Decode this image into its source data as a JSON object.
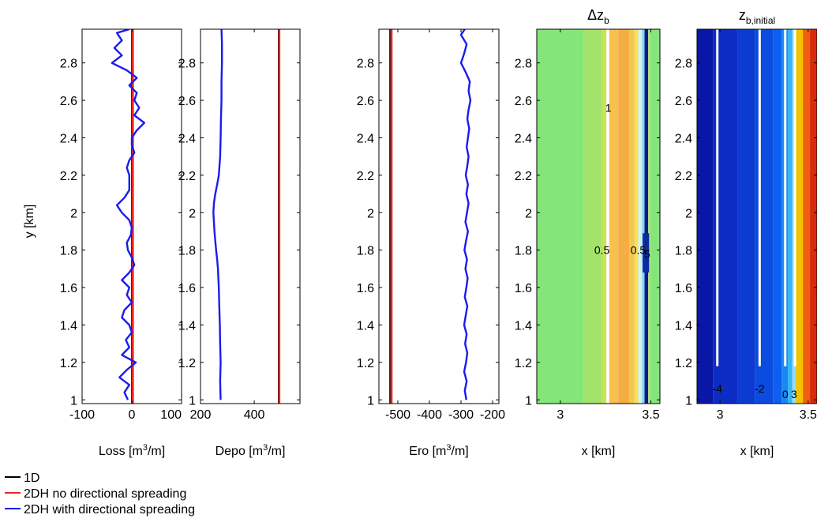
{
  "figure": {
    "y_axis_label": "y [km]",
    "legend": [
      {
        "label": "1D",
        "color": "#000000"
      },
      {
        "label": "2DH no directional spreading",
        "color": "#e6261f"
      },
      {
        "label": "2DH with directional spreading",
        "color": "#1b1bf0"
      }
    ]
  },
  "chart_data": [
    {
      "type": "line",
      "xlabel": "Loss [m³/m]",
      "ylabel": "y [km]",
      "xlim": [
        -100,
        100
      ],
      "ylim": [
        0.98,
        2.98
      ],
      "xticks": [
        "-100",
        "0",
        "100"
      ],
      "yticks": [
        "1",
        "1.2",
        "1.4",
        "1.6",
        "1.8",
        "2",
        "2.2",
        "2.4",
        "2.6",
        "2.8"
      ],
      "grid": false,
      "legend_position": "below plots",
      "series": [
        {
          "name": "1D",
          "color": "#000000",
          "x": [
            0,
            0
          ],
          "y": [
            0.98,
            2.98
          ]
        },
        {
          "name": "2DH no directional spreading",
          "color": "#e6261f",
          "x": [
            2,
            2
          ],
          "y": [
            0.98,
            2.98
          ]
        },
        {
          "name": "2DH with directional spreading",
          "color": "#1b1bf0",
          "y": [
            1.0,
            1.04,
            1.08,
            1.12,
            1.16,
            1.2,
            1.24,
            1.28,
            1.32,
            1.36,
            1.4,
            1.44,
            1.48,
            1.52,
            1.56,
            1.6,
            1.64,
            1.68,
            1.72,
            1.76,
            1.8,
            1.84,
            1.88,
            1.92,
            1.96,
            2.0,
            2.04,
            2.08,
            2.12,
            2.16,
            2.2,
            2.24,
            2.28,
            2.32,
            2.36,
            2.4,
            2.44,
            2.48,
            2.52,
            2.56,
            2.6,
            2.64,
            2.68,
            2.72,
            2.76,
            2.8,
            2.84,
            2.88,
            2.92,
            2.96,
            2.98
          ],
          "x": [
            -8,
            -15,
            -5,
            -25,
            -10,
            8,
            -20,
            -5,
            -12,
            0,
            -5,
            -20,
            -15,
            0,
            -10,
            -5,
            -20,
            -5,
            5,
            0,
            -8,
            -10,
            -2,
            0,
            -5,
            -20,
            -30,
            -15,
            -5,
            -5,
            -5,
            -10,
            -5,
            5,
            0,
            0,
            10,
            25,
            5,
            15,
            5,
            10,
            -5,
            10,
            -10,
            -40,
            -20,
            -35,
            -20,
            -30,
            -5
          ]
        }
      ]
    },
    {
      "type": "line",
      "xlabel": "Depo [m³/m]",
      "xlim": [
        200,
        570
      ],
      "ylim": [
        0.98,
        2.98
      ],
      "xticks": [
        "200",
        "400"
      ],
      "yticks": [
        "1",
        "1.2",
        "1.4",
        "1.6",
        "1.8",
        "2",
        "2.2",
        "2.4",
        "2.6",
        "2.8"
      ],
      "series": [
        {
          "name": "1D",
          "color": "#000000",
          "x": [
            490,
            490
          ],
          "y": [
            0.98,
            2.98
          ]
        },
        {
          "name": "2DH no directional spreading",
          "color": "#e6261f",
          "x": [
            493,
            493
          ],
          "y": [
            0.98,
            2.98
          ]
        },
        {
          "name": "2DH with directional spreading",
          "color": "#1b1bf0",
          "y": [
            1.0,
            1.1,
            1.2,
            1.3,
            1.4,
            1.5,
            1.6,
            1.7,
            1.75,
            1.8,
            1.85,
            1.9,
            1.95,
            2.0,
            2.05,
            2.1,
            2.15,
            2.2,
            2.3,
            2.4,
            2.5,
            2.6,
            2.7,
            2.8,
            2.9,
            2.98
          ],
          "x": [
            275,
            273,
            275,
            273,
            272,
            270,
            268,
            265,
            262,
            258,
            255,
            252,
            250,
            248,
            250,
            255,
            262,
            268,
            273,
            275,
            276,
            278,
            278,
            280,
            280,
            278
          ]
        }
      ]
    },
    {
      "type": "line",
      "xlabel": "Ero [m³/m]",
      "xlim": [
        -560,
        -180
      ],
      "ylim": [
        0.98,
        2.98
      ],
      "xticks": [
        "-500",
        "-400",
        "-300",
        "-200"
      ],
      "yticks": [
        "1",
        "1.2",
        "1.4",
        "1.6",
        "1.8",
        "2",
        "2.2",
        "2.4",
        "2.6",
        "2.8"
      ],
      "series": [
        {
          "name": "1D",
          "color": "#000000",
          "x": [
            -525,
            -525
          ],
          "y": [
            0.98,
            2.98
          ]
        },
        {
          "name": "2DH no directional spreading",
          "color": "#e6261f",
          "x": [
            -520,
            -520
          ],
          "y": [
            0.98,
            2.98
          ]
        },
        {
          "name": "2DH with directional spreading",
          "color": "#1b1bf0",
          "y": [
            1.0,
            1.05,
            1.1,
            1.15,
            1.2,
            1.25,
            1.3,
            1.35,
            1.4,
            1.45,
            1.5,
            1.55,
            1.6,
            1.65,
            1.7,
            1.75,
            1.8,
            1.85,
            1.9,
            1.95,
            2.0,
            2.05,
            2.1,
            2.15,
            2.2,
            2.25,
            2.3,
            2.35,
            2.4,
            2.45,
            2.5,
            2.55,
            2.6,
            2.65,
            2.7,
            2.75,
            2.8,
            2.85,
            2.9,
            2.95,
            2.98
          ],
          "x": [
            -283,
            -288,
            -282,
            -290,
            -284,
            -280,
            -287,
            -282,
            -290,
            -285,
            -280,
            -288,
            -283,
            -279,
            -286,
            -281,
            -289,
            -284,
            -278,
            -286,
            -281,
            -276,
            -283,
            -278,
            -285,
            -280,
            -276,
            -282,
            -278,
            -274,
            -280,
            -276,
            -270,
            -276,
            -272,
            -285,
            -300,
            -290,
            -282,
            -300,
            -288
          ]
        }
      ]
    },
    {
      "type": "heatmap",
      "title": "Δz",
      "title_sub": "b",
      "xlabel": "x [km]",
      "xlim": [
        2.87,
        3.55
      ],
      "ylim": [
        0.98,
        2.98
      ],
      "xticks": [
        "3",
        "3.5"
      ],
      "yticks": [
        "1",
        "1.2",
        "1.4",
        "1.6",
        "1.8",
        "2",
        "2.2",
        "2.4",
        "2.6",
        "2.8"
      ],
      "bands": [
        {
          "x0": 2.87,
          "x1": 3.13,
          "color": "#84e67a"
        },
        {
          "x0": 3.13,
          "x1": 3.23,
          "color": "#a3e36b"
        },
        {
          "x0": 3.23,
          "x1": 3.255,
          "color": "#c8e25a"
        },
        {
          "x0": 3.255,
          "x1": 3.27,
          "color": "#ffffff"
        },
        {
          "x0": 3.27,
          "x1": 3.32,
          "color": "#f7c04f"
        },
        {
          "x0": 3.32,
          "x1": 3.38,
          "color": "#f6ad43"
        },
        {
          "x0": 3.38,
          "x1": 3.41,
          "color": "#f2c84e"
        },
        {
          "x0": 3.41,
          "x1": 3.43,
          "color": "#f8e05c"
        },
        {
          "x0": 3.43,
          "x1": 3.45,
          "color": "#d6f2e8"
        },
        {
          "x0": 3.45,
          "x1": 3.465,
          "color": "#8ed6f0"
        },
        {
          "x0": 3.465,
          "x1": 3.485,
          "color": "#0d1a8c"
        },
        {
          "x0": 3.485,
          "x1": 3.5,
          "color": "#9fe27d"
        },
        {
          "x0": 3.5,
          "x1": 3.55,
          "color": "#84e67a"
        }
      ],
      "patch": {
        "x0": 3.455,
        "x1": 3.49,
        "y0": 1.68,
        "y1": 1.89,
        "color": "#0b2aa0"
      },
      "contour_labels": [
        {
          "text": "1",
          "x": 3.265,
          "y": 2.56
        },
        {
          "text": "0.5",
          "x": 3.23,
          "y": 1.8
        },
        {
          "text": "0.5",
          "x": 3.43,
          "y": 1.8
        },
        {
          "text": "5",
          "x": 3.48,
          "y": 1.78
        }
      ]
    },
    {
      "type": "heatmap",
      "title": "z",
      "title_sub": "b,initial",
      "xlabel": "x [km]",
      "xlim": [
        2.87,
        3.55
      ],
      "ylim": [
        0.98,
        2.98
      ],
      "xticks": [
        "3",
        "3.5"
      ],
      "yticks": [
        "1",
        "1.2",
        "1.4",
        "1.6",
        "1.8",
        "2",
        "2.2",
        "2.4",
        "2.6",
        "2.8"
      ],
      "bands": [
        {
          "x0": 2.87,
          "x1": 2.96,
          "color": "#0a17a6"
        },
        {
          "x0": 2.96,
          "x1": 3.1,
          "color": "#0d2cc4"
        },
        {
          "x0": 3.1,
          "x1": 3.2,
          "color": "#0d3bd0"
        },
        {
          "x0": 3.2,
          "x1": 3.3,
          "color": "#0c4be0"
        },
        {
          "x0": 3.3,
          "x1": 3.35,
          "color": "#0e5ff0"
        },
        {
          "x0": 3.35,
          "x1": 3.385,
          "color": "#1888f5"
        },
        {
          "x0": 3.385,
          "x1": 3.41,
          "color": "#35b5f5"
        },
        {
          "x0": 3.41,
          "x1": 3.43,
          "color": "#8fdcff"
        },
        {
          "x0": 3.43,
          "x1": 3.47,
          "color": "#f2c300"
        },
        {
          "x0": 3.47,
          "x1": 3.51,
          "color": "#f06010"
        },
        {
          "x0": 3.51,
          "x1": 3.55,
          "color": "#d92a0a"
        }
      ],
      "contour_lines": [
        2.985,
        3.225,
        3.37,
        3.425
      ],
      "contour_labels": [
        {
          "text": "-4",
          "x": 2.985,
          "y": 1.06
        },
        {
          "text": "-2",
          "x": 3.225,
          "y": 1.06
        },
        {
          "text": "0",
          "x": 3.37,
          "y": 1.03
        },
        {
          "text": "3",
          "x": 3.42,
          "y": 1.03
        }
      ]
    }
  ]
}
